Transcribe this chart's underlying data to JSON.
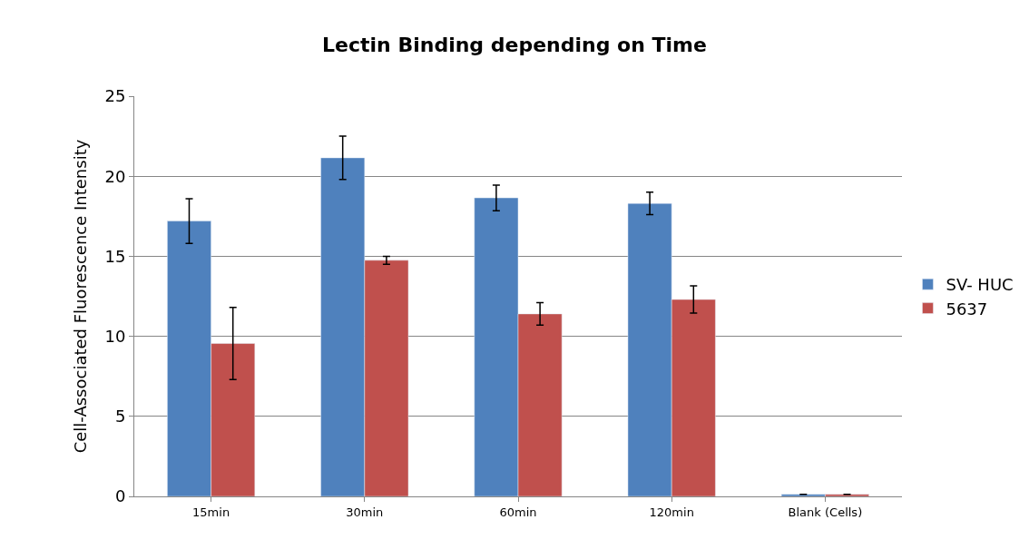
{
  "chart_data": {
    "type": "bar",
    "title": "Lectin Binding depending on Time",
    "ylabel": "Cell-Associated Fluorescence Intensity",
    "categories": [
      "15min",
      "30min",
      "60min",
      "120min",
      "Blank (Cells)"
    ],
    "series": [
      {
        "name": "SV- HUC",
        "color": "#4f81bd",
        "values": [
          17.2,
          21.15,
          18.65,
          18.3,
          0.13
        ],
        "errors": [
          1.4,
          1.35,
          0.8,
          0.7,
          null
        ]
      },
      {
        "name": "5637",
        "color": "#c0504d",
        "values": [
          9.55,
          14.75,
          11.4,
          12.3,
          0.13
        ],
        "errors": [
          2.25,
          0.25,
          0.7,
          0.85,
          null
        ]
      }
    ],
    "ylim": [
      0,
      25
    ],
    "yticks": [
      0,
      5,
      10,
      15,
      20,
      25
    ],
    "grid": "y",
    "legend": "right"
  }
}
